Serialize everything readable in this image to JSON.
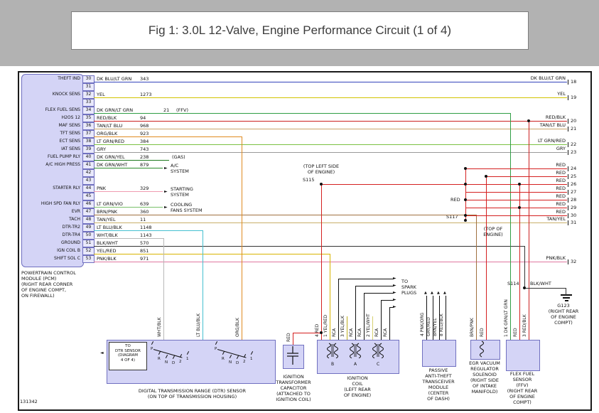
{
  "title": "Fig 1: 3.0L 12-Valve, Engine Performance Circuit (1 of 4)",
  "figure_number": "131342",
  "colors": {
    "lavender": "#d4d4f6",
    "lavender_border": "#7070c0",
    "header_gray": "#b2b2b2",
    "black": "#111111",
    "dkblu_ltgrn": "#3344bb",
    "yel": "#d2c300",
    "dkgrn_ltgrn": "#2f9e44",
    "red_blk": "#cc2020",
    "tan_ltblu": "#c9a36a",
    "org_blk": "#e08a20",
    "ltgrn_red": "#7ac142",
    "gry": "#9a9a9a",
    "dkgrn_yel": "#1f7a1f",
    "dkgrn_wht": "#2a8a2a",
    "pnk": "#f09bb0",
    "ltgrn_vio": "#79c06a",
    "brn_pnk": "#a07040",
    "tan_yel": "#c9b06a",
    "ltblu_blk": "#45c0d0",
    "wht_blk": "#b8b8b8",
    "blk_wht": "#333333",
    "yel_red": "#d8b400",
    "pnk_blk": "#e078a0",
    "red": "#d42020",
    "yel_blk": "#bfae20",
    "yel_wht": "#d6d070"
  },
  "pcm": {
    "caption": "POWERTRAIN CONTROL\nMODULE (PCM)\n(RIGHT REAR CORNER\nOF ENGINE COMPT,\nON FIREWALL)",
    "rows": [
      {
        "pin": "30",
        "label": "THEFT IND",
        "wire": "DK BLU/LT GRN",
        "circuit": "343",
        "note": ""
      },
      {
        "pin": "31",
        "label": "",
        "wire": "",
        "circuit": "",
        "note": ""
      },
      {
        "pin": "32",
        "label": "KNOCK SENS",
        "wire": "YEL",
        "circuit": "1273",
        "note": ""
      },
      {
        "pin": "33",
        "label": "",
        "wire": "",
        "circuit": "",
        "note": ""
      },
      {
        "pin": "34",
        "label": "FLEX FUEL SENS",
        "wire": "DK GRN/LT GRN",
        "circuit": "21",
        "note": "(FFV)"
      },
      {
        "pin": "35",
        "label": "H2OS 12",
        "wire": "RED/BLK",
        "circuit": "94",
        "note": ""
      },
      {
        "pin": "36",
        "label": "MAF SENS",
        "wire": "TAN/LT BLU",
        "circuit": "968",
        "note": ""
      },
      {
        "pin": "37",
        "label": "TFT SENS",
        "wire": "ORG/BLK",
        "circuit": "923",
        "note": ""
      },
      {
        "pin": "38",
        "label": "ECT SENS",
        "wire": "LT GRN/RED",
        "circuit": "384",
        "note": ""
      },
      {
        "pin": "39",
        "label": "IAT SENS",
        "wire": "GRY",
        "circuit": "743",
        "note": ""
      },
      {
        "pin": "40",
        "label": "FUEL PUMP RLY",
        "wire": "DK GRN/YEL",
        "circuit": "238",
        "note": "(GAS)"
      },
      {
        "pin": "41",
        "label": "A/C HIGH PRESS",
        "wire": "DK GRN/WHT",
        "circuit": "879",
        "note": ""
      },
      {
        "pin": "42",
        "label": "",
        "wire": "",
        "circuit": "",
        "note": ""
      },
      {
        "pin": "43",
        "label": "",
        "wire": "",
        "circuit": "",
        "note": ""
      },
      {
        "pin": "44",
        "label": "STARTER RLY",
        "wire": "PNK",
        "circuit": "329",
        "note": ""
      },
      {
        "pin": "45",
        "label": "",
        "wire": "",
        "circuit": "",
        "note": ""
      },
      {
        "pin": "46",
        "label": "HIGH SPD FAN RLY",
        "wire": "LT GRN/VIO",
        "circuit": "639",
        "note": ""
      },
      {
        "pin": "47",
        "label": "EVR",
        "wire": "BRN/PNK",
        "circuit": "360",
        "note": ""
      },
      {
        "pin": "48",
        "label": "TACH",
        "wire": "TAN/YEL",
        "circuit": "11",
        "note": ""
      },
      {
        "pin": "49",
        "label": "DTR-TR2",
        "wire": "LT BLU/BLK",
        "circuit": "1148",
        "note": ""
      },
      {
        "pin": "50",
        "label": "DTR-TR4",
        "wire": "WHT/BLK",
        "circuit": "1143",
        "note": ""
      },
      {
        "pin": "51",
        "label": "GROUND",
        "wire": "BLK/WHT",
        "circuit": "570",
        "note": ""
      },
      {
        "pin": "52",
        "label": "IGN COIL B",
        "wire": "YEL/RED",
        "circuit": "851",
        "note": ""
      },
      {
        "pin": "53",
        "label": "SHIFT SOL C",
        "wire": "PNK/BLK",
        "circuit": "971",
        "note": ""
      }
    ]
  },
  "systems": {
    "ac": "A/C\nSYSTEM",
    "starting": "STARTING\nSYSTEM",
    "cooling": "COOLING\nFANS SYSTEM"
  },
  "right_edge": [
    {
      "label": "DK BLU/LT GRN",
      "number": "18"
    },
    {
      "label": "YEL",
      "number": "19"
    },
    {
      "label": "RED/BLK",
      "number": "20"
    },
    {
      "label": "TAN/LT BLU",
      "number": "21"
    },
    {
      "label": "LT GRN/RED",
      "number": "22"
    },
    {
      "label": "GRY",
      "number": "23"
    },
    {
      "label": "RED",
      "number": "24"
    },
    {
      "label": "RED",
      "number": "25"
    },
    {
      "label": "RED",
      "number": "26"
    },
    {
      "label": "RED",
      "number": "27"
    },
    {
      "label": "RED",
      "number": "28"
    },
    {
      "label": "RED",
      "number": "29"
    },
    {
      "label": "RED",
      "number": "30"
    },
    {
      "label": "TAN/YEL",
      "number": "31"
    },
    {
      "label": "PNK/BLK",
      "number": "32"
    }
  ],
  "annotations": {
    "s115_note": "(TOP LEFT SIDE\nOF ENGINE)",
    "s115": "S115",
    "red_feed": "RED",
    "s117": "S117",
    "top_of_engine": "(TOP OF\nENGINE)",
    "s114": "S114",
    "s114_wire": "BLK/WHT",
    "g123": "G123\n(RIGHT REAR\nOF ENGINE\nCOMPT)",
    "to_spark_plugs": "TO\nSPARK\nPLUGS"
  },
  "components": {
    "dtr": {
      "inline_ref": "TO\nDTR SENSOR\n(DIAGRAM\n4 OF 4)",
      "positions": [
        "P",
        "R",
        "N",
        "D",
        "2",
        "1"
      ],
      "wires": [
        "WHT/BLK",
        "LT BLU/BLK",
        "ORG/BLK"
      ],
      "caption": "DIGITAL TRANSMISSION RANGE (DTR) SENSOR\n(ON TOP OF TRANSMISSION HOUSING)"
    },
    "capacitor": {
      "wires": [
        "RED"
      ],
      "caption": "IGNITION\nTRANSFORMER\nCAPACITOR\n(ATTACHED TO\nIGNITION COIL)"
    },
    "coil": {
      "wires": [
        "4 RED",
        "1 YEL/RED",
        "RCA",
        "3 YEL/BLK",
        "RCA",
        "RCA",
        "2 YEL/WHT",
        "RCA",
        "RCA"
      ],
      "terminals": [
        "B",
        "A",
        "C"
      ],
      "caption": "IGNITION\nCOIL\n(LEFT REAR\nOF ENGINE)"
    },
    "pats": {
      "wires": [
        "4 PNK/ORG",
        "GRY/RED",
        "BRN/YEL",
        "8 RED/BLK"
      ],
      "caption": "PASSIVE\nANTI-THEFT\nTRANSCEIVER\nMODULE\n(CENTER\nOF DASH)"
    },
    "egr": {
      "wires": [
        "BRN/PNK",
        "RED"
      ],
      "caption": "EGR VACUUM\nREGULATOR\nSOLENOID\n(RIGHT SIDE\nOF INTAKE\nMANIFOLD)"
    },
    "flex": {
      "wires": [
        "1 DK GRN/LT GRN",
        "RED",
        "3 RED/BLK"
      ],
      "caption": "FLEX FUEL\nSENSOR\n(FFV)\n(RIGHT REAR\nOF ENGINE\nCOMPT)"
    }
  }
}
